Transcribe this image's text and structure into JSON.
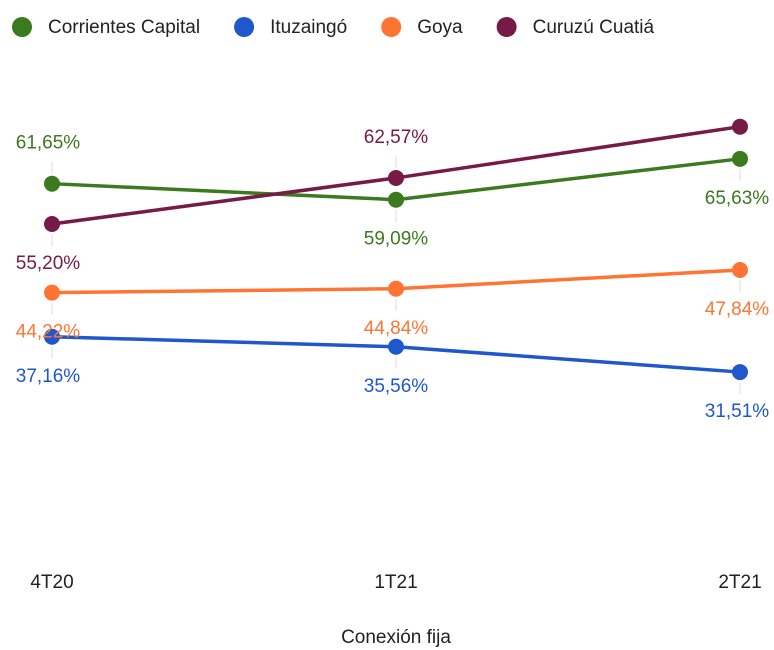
{
  "chart_data": {
    "type": "line",
    "x_label": "Conexión fija",
    "categories": [
      "4T20",
      "1T21",
      "2T21"
    ],
    "ylim": [
      0,
      80
    ],
    "series": [
      {
        "name": "Corrientes Capital",
        "color": "#3b7a1e",
        "values": [
          61.65,
          59.09,
          65.63
        ],
        "value_labels": [
          "61,65%",
          "59,09%",
          "65,63%"
        ]
      },
      {
        "name": "Ituzaingó",
        "color": "#1f57cc",
        "values": [
          37.16,
          35.56,
          31.51
        ],
        "value_labels": [
          "37,16%",
          "35,56%",
          "31,51%"
        ]
      },
      {
        "name": "Goya",
        "color": "#ff7433",
        "values": [
          44.22,
          44.84,
          47.84
        ],
        "value_labels": [
          "44,22%",
          "44,84%",
          "47,84%"
        ]
      },
      {
        "name": "Curuzú Cuatiá",
        "color": "#761a48",
        "values": [
          55.2,
          62.57,
          70.77
        ],
        "value_labels": [
          "55,20%",
          "62,57%",
          null
        ]
      }
    ]
  }
}
